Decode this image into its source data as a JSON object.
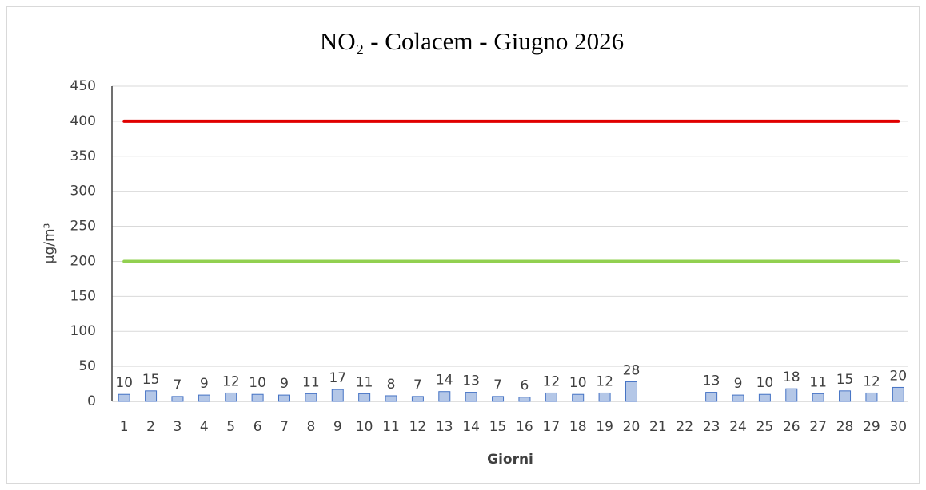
{
  "chart_data": {
    "type": "bar",
    "title": "NO₂ - Colacem - Giugno 2026",
    "x_label": "Giorni",
    "y_label": "µg/m³",
    "categories": [
      "1",
      "2",
      "3",
      "4",
      "5",
      "6",
      "7",
      "8",
      "9",
      "10",
      "11",
      "12",
      "13",
      "14",
      "15",
      "16",
      "17",
      "18",
      "19",
      "20",
      "21",
      "22",
      "23",
      "24",
      "25",
      "26",
      "27",
      "28",
      "29",
      "30"
    ],
    "values": [
      10,
      15,
      7,
      9,
      12,
      10,
      9,
      11,
      17,
      11,
      8,
      7,
      14,
      13,
      7,
      6,
      12,
      10,
      12,
      28,
      null,
      null,
      13,
      9,
      10,
      18,
      11,
      15,
      12,
      20
    ],
    "color": "#b4c7e7",
    "edge_color": "#4472c4",
    "reference_lines": [
      {
        "value": 400,
        "color": "#e00000"
      },
      {
        "value": 200,
        "color": "#92d050"
      }
    ],
    "ylim": [
      0,
      450
    ],
    "yticks": [
      0,
      50,
      100,
      150,
      200,
      250,
      300,
      350,
      400,
      450
    ],
    "grid": true
  }
}
